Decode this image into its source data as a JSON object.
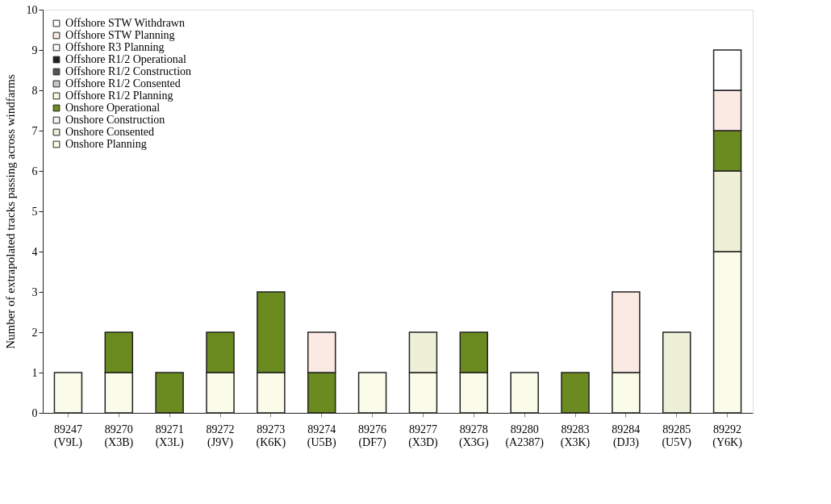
{
  "chart_data": {
    "type": "bar",
    "stacked": true,
    "ylabel": "Number of extrapolated tracks passing across windfarms",
    "categories": [
      "89247 (V9L)",
      "89270 (X3B)",
      "89271 (X3L)",
      "89272 (J9V)",
      "89273 (K6K)",
      "89274 (U5B)",
      "89276 (DF7)",
      "89277 (X3D)",
      "89278 (X3G)",
      "89280 (A2387)",
      "89283 (X3K)",
      "89284 (DJ3)",
      "89285 (U5V)",
      "89292 (Y6K)"
    ],
    "series": [
      {
        "name": "Onshore Planning",
        "color": "#fbfbe9",
        "values": [
          1,
          1,
          null,
          1,
          1,
          null,
          1,
          1,
          1,
          1,
          null,
          1,
          null,
          4
        ]
      },
      {
        "name": "Onshore Consented",
        "color": "#edf0d6",
        "values": [
          null,
          null,
          null,
          null,
          null,
          null,
          null,
          1,
          null,
          null,
          null,
          null,
          2,
          2
        ]
      },
      {
        "name": "Onshore Construction",
        "color": "#f4f4f0",
        "values": [
          null,
          null,
          null,
          null,
          null,
          null,
          null,
          null,
          null,
          null,
          null,
          null,
          null,
          null
        ]
      },
      {
        "name": "Onshore Operational",
        "color": "#6b8a1f",
        "values": [
          null,
          1,
          1,
          1,
          2,
          1,
          null,
          null,
          1,
          null,
          1,
          null,
          null,
          1
        ]
      },
      {
        "name": "Offshore R1/2 Planning",
        "color": "#f6f8e6",
        "values": [
          null,
          null,
          null,
          null,
          null,
          null,
          null,
          null,
          null,
          null,
          null,
          null,
          null,
          null
        ]
      },
      {
        "name": "Offshore R1/2 Consented",
        "color": "#c8c8c8",
        "values": [
          null,
          null,
          null,
          null,
          null,
          null,
          null,
          null,
          null,
          null,
          null,
          null,
          null,
          null
        ]
      },
      {
        "name": "Offshore R1/2 Construction",
        "color": "#555555",
        "values": [
          null,
          null,
          null,
          null,
          null,
          null,
          null,
          null,
          null,
          null,
          null,
          null,
          null,
          null
        ]
      },
      {
        "name": "Offshore R1/2 Operational",
        "color": "#222222",
        "values": [
          null,
          null,
          null,
          null,
          null,
          null,
          null,
          null,
          null,
          null,
          null,
          null,
          null,
          null
        ]
      },
      {
        "name": "Offshore R3 Planning",
        "color": "#fafafa",
        "values": [
          null,
          null,
          null,
          null,
          null,
          null,
          null,
          null,
          null,
          null,
          null,
          null,
          null,
          null
        ]
      },
      {
        "name": "Offshore STW Planning",
        "color": "#fbe9e4",
        "values": [
          null,
          null,
          null,
          null,
          null,
          1,
          null,
          null,
          null,
          null,
          null,
          2,
          null,
          1
        ]
      },
      {
        "name": "Offshore STW Withdrawn",
        "color": "#ffffff",
        "values": [
          null,
          null,
          null,
          null,
          null,
          null,
          null,
          null,
          null,
          null,
          null,
          null,
          null,
          1
        ]
      }
    ],
    "ylim": [
      0,
      10
    ],
    "yticks": [
      0,
      1,
      2,
      3,
      4,
      5,
      6,
      7,
      8,
      9,
      10
    ],
    "grid": false,
    "legend": "top left"
  }
}
